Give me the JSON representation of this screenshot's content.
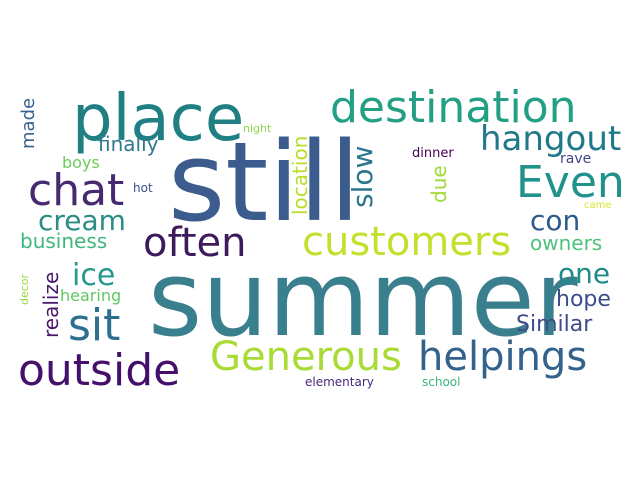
{
  "words": [
    {
      "text": "still",
      "color": "#3b5c8c"
    },
    {
      "text": "summer",
      "color": "#3a7f8e"
    },
    {
      "text": "place",
      "color": "#1f7f82"
    },
    {
      "text": "destination",
      "color": "#23a083"
    },
    {
      "text": "hangout",
      "color": "#21788a"
    },
    {
      "text": "chat",
      "color": "#462a70"
    },
    {
      "text": "Even",
      "color": "#21918c"
    },
    {
      "text": "customers",
      "color": "#c3e02e"
    },
    {
      "text": "often",
      "color": "#3d1a5c"
    },
    {
      "text": "cream",
      "color": "#2b8c85"
    },
    {
      "text": "business",
      "color": "#3fb67c"
    },
    {
      "text": "con",
      "color": "#2b5a8c"
    },
    {
      "text": "owners",
      "color": "#4fc17a"
    },
    {
      "text": "ice",
      "color": "#24988a"
    },
    {
      "text": "sit",
      "color": "#2c6f8e"
    },
    {
      "text": "one",
      "color": "#1f8a8a"
    },
    {
      "text": "hope",
      "color": "#3a4e8a"
    },
    {
      "text": "Similar",
      "color": "#3f4a88"
    },
    {
      "text": "Generous",
      "color": "#a8db34"
    },
    {
      "text": "helpings",
      "color": "#33638d"
    },
    {
      "text": "outside",
      "color": "#44106b"
    },
    {
      "text": "finally",
      "color": "#2c7a8e"
    },
    {
      "text": "boys",
      "color": "#6ccd5a"
    },
    {
      "text": "made",
      "color": "#34648e"
    },
    {
      "text": "night",
      "color": "#8fd744"
    },
    {
      "text": "hot",
      "color": "#3b528b"
    },
    {
      "text": "dinner",
      "color": "#440154"
    },
    {
      "text": "rave",
      "color": "#414487"
    },
    {
      "text": "came",
      "color": "#d9e521"
    },
    {
      "text": "location",
      "color": "#b8de29"
    },
    {
      "text": "slow",
      "color": "#2a788e"
    },
    {
      "text": "due",
      "color": "#a0da39"
    },
    {
      "text": "realize",
      "color": "#48186a"
    },
    {
      "text": "hearing",
      "color": "#5ec962"
    },
    {
      "text": "decor",
      "color": "#95d840"
    },
    {
      "text": "elementary",
      "color": "#482878"
    },
    {
      "text": "school",
      "color": "#3eb57d"
    }
  ]
}
